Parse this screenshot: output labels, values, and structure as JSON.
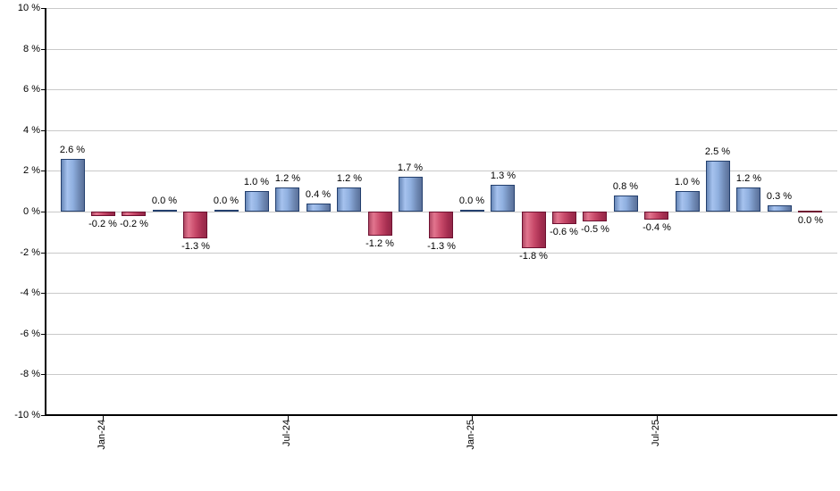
{
  "chart_data": {
    "type": "bar",
    "title": "",
    "xlabel": "",
    "ylabel": "",
    "categories": [
      "Dec-23",
      "Jan-24",
      "Feb-24",
      "Mar-24",
      "Apr-24",
      "May-24",
      "Jun-24",
      "Jul-24",
      "Aug-24",
      "Sep-24",
      "Oct-24",
      "Nov-24",
      "Dec-24",
      "Jan-25",
      "Feb-25",
      "Mar-25",
      "Apr-25",
      "May-25",
      "Jun-25",
      "Jul-25",
      "Aug-25",
      "Sep-25",
      "Oct-25",
      "Nov-25",
      "Dec-25"
    ],
    "values": [
      2.6,
      -0.2,
      -0.2,
      0.0,
      -1.3,
      0.0,
      1.0,
      1.2,
      0.4,
      1.2,
      -1.2,
      1.7,
      -1.3,
      0.0,
      1.3,
      -1.8,
      -0.6,
      -0.5,
      0.8,
      -0.4,
      1.0,
      2.5,
      1.2,
      0.3,
      0.0
    ],
    "bar_labels": [
      "2.6 %",
      "-0.2 %",
      "-0.2 %",
      "0.0 %",
      "-1.3 %",
      "0.0 %",
      "1.0 %",
      "1.2 %",
      "0.4 %",
      "1.2 %",
      "-1.2 %",
      "1.7 %",
      "-1.3 %",
      "0.0 %",
      "1.3 %",
      "-1.8 %",
      "-0.6 %",
      "-0.5 %",
      "0.8 %",
      "-0.4 %",
      "1.0 %",
      "2.5 %",
      "1.2 %",
      "0.3 %",
      "0.0 %"
    ],
    "bar_colors": [
      "blue",
      "red",
      "red",
      "blue",
      "red",
      "blue",
      "blue",
      "blue",
      "blue",
      "blue",
      "red",
      "blue",
      "red",
      "blue",
      "blue",
      "red",
      "red",
      "red",
      "blue",
      "red",
      "blue",
      "blue",
      "blue",
      "blue",
      "red"
    ],
    "ylim": [
      -10,
      10
    ],
    "y_tick_step": 2,
    "y_tick_values": [
      10,
      8,
      6,
      4,
      2,
      0,
      -2,
      -4,
      -6,
      -8,
      -10
    ],
    "y_tick_labels": [
      "10 %",
      "8 %",
      "6 %",
      "4 %",
      "2 %",
      "0 %",
      "-2 %",
      "-4 %",
      "-6 %",
      "-8 %",
      "-10 %"
    ],
    "x_ticks": [
      {
        "index": 1,
        "label": "Jan-24"
      },
      {
        "index": 7,
        "label": "Jul-24"
      },
      {
        "index": 13,
        "label": "Jan-25"
      },
      {
        "index": 19,
        "label": "Jul-25"
      }
    ],
    "grid": true,
    "legend_position": "none",
    "colors": {
      "positive": "#8fafdf",
      "negative": "#c84a6a",
      "gridline": "#c9c9c9",
      "axis": "#000000",
      "text": "#000000",
      "background": "#ffffff"
    }
  }
}
